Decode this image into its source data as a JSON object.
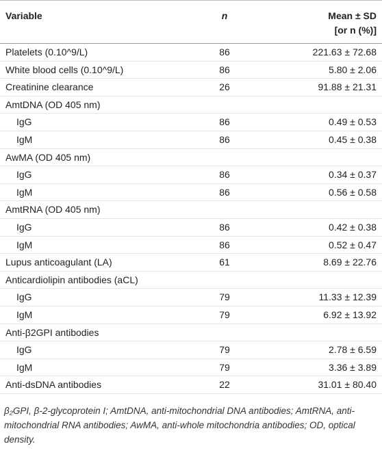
{
  "table": {
    "header": {
      "variable": "Variable",
      "n": "n",
      "value": [
        "Mean ± SD",
        "[or n (%)]"
      ]
    },
    "rows": [
      {
        "variable": "Platelets (0.10^9/L)",
        "n": 86,
        "value": "221.63 ± 72.68"
      },
      {
        "variable": "White blood cells (0.10^9/L)",
        "n": 86,
        "value": "5.80 ± 2.06"
      },
      {
        "variable": "Creatinine clearance",
        "n": 26,
        "value": "91.88 ± 21.31"
      },
      {
        "variable": "AmtDNA (OD 405 nm)",
        "subrows": [
          {
            "variable": "IgG",
            "n": 86,
            "value": "0.49 ± 0.53"
          },
          {
            "variable": "IgM",
            "n": 86,
            "value": "0.45 ± 0.38"
          }
        ]
      },
      {
        "variable": "AwMA (OD 405 nm)",
        "subrows": [
          {
            "variable": "IgG",
            "n": 86,
            "value": "0.34 ± 0.37"
          },
          {
            "variable": "IgM",
            "n": 86,
            "value": "0.56 ± 0.58"
          }
        ]
      },
      {
        "variable": "AmtRNA (OD 405 nm)",
        "subrows": [
          {
            "variable": "IgG",
            "n": 86,
            "value": "0.42 ± 0.38"
          },
          {
            "variable": "IgM",
            "n": 86,
            "value": "0.52 ± 0.47"
          }
        ]
      },
      {
        "variable": "Lupus anticoagulant (LA)",
        "n": 61,
        "value": "8.69 ± 22.76"
      },
      {
        "variable": "Anticardiolipin antibodies (aCL)",
        "subrows": [
          {
            "variable": "IgG",
            "n": 79,
            "value": "11.33 ± 12.39"
          },
          {
            "variable": "IgM",
            "n": 79,
            "value": "6.92 ± 13.92"
          }
        ]
      },
      {
        "variable": "Anti-β2GPI antibodies",
        "subrows": [
          {
            "variable": "IgG",
            "n": 79,
            "value": "2.78 ± 6.59"
          },
          {
            "variable": "IgM",
            "n": 79,
            "value": "3.36 ± 3.89"
          }
        ]
      },
      {
        "variable": "Anti-dsDNA antibodies",
        "n": 22,
        "value": "31.01 ± 80.40"
      }
    ],
    "footnote": "β₂GPI, β-2-glycoprotein I; AmtDNA, anti-mitochondrial DNA antibodies; AmtRNA, anti-mitochondrial RNA antibodies; AwMA, anti-whole mitochondria antibodies; OD, optical density."
  }
}
